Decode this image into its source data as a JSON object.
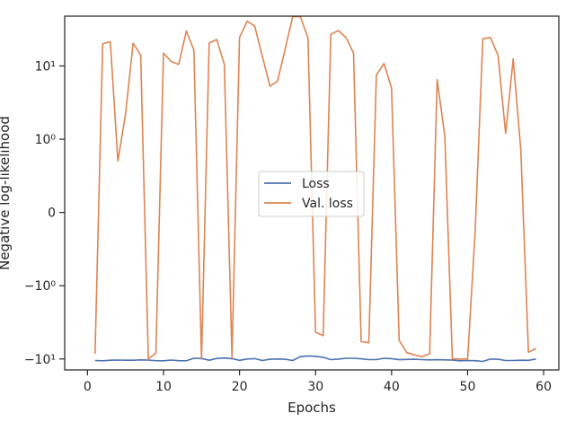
{
  "chart_data": {
    "type": "line",
    "xlabel": "Epochs",
    "ylabel": "Negative log-likelihood",
    "yscale": "symlog",
    "xlim": [
      -3,
      62
    ],
    "x_ticks": [
      0,
      10,
      20,
      30,
      40,
      50,
      60
    ],
    "y_ticks": [
      {
        "value": -10,
        "label": "−10¹"
      },
      {
        "value": -1,
        "label": "−10⁰"
      },
      {
        "value": 0,
        "label": "0"
      },
      {
        "value": 1,
        "label": "10⁰"
      },
      {
        "value": 10,
        "label": "10¹"
      }
    ],
    "grid": false,
    "legend_position": "center-right",
    "x": [
      1,
      2,
      3,
      4,
      5,
      6,
      7,
      8,
      9,
      10,
      11,
      12,
      13,
      14,
      15,
      16,
      17,
      18,
      19,
      20,
      21,
      22,
      23,
      24,
      25,
      26,
      27,
      28,
      29,
      30,
      31,
      32,
      33,
      34,
      35,
      36,
      37,
      38,
      39,
      40,
      41,
      42,
      43,
      44,
      45,
      46,
      47,
      48,
      49,
      50,
      51,
      52,
      53,
      54,
      55,
      56,
      57,
      58,
      59
    ],
    "series": [
      {
        "name": "Loss",
        "color": "#4c72b0",
        "values": [
          -10.5,
          -10.6,
          -10.4,
          -10.35,
          -10.4,
          -10.42,
          -10.3,
          -10.35,
          -10.55,
          -10.6,
          -10.35,
          -10.55,
          -10.6,
          -9.8,
          -9.85,
          -10.4,
          -9.85,
          -9.7,
          -9.9,
          -10.45,
          -10.0,
          -9.9,
          -10.5,
          -10.1,
          -10.0,
          -10.1,
          -10.5,
          -9.3,
          -9.1,
          -9.2,
          -9.5,
          -10.2,
          -10.05,
          -9.8,
          -9.8,
          -9.95,
          -10.2,
          -10.2,
          -9.8,
          -9.9,
          -10.25,
          -10.15,
          -10.1,
          -10.2,
          -10.3,
          -10.25,
          -10.3,
          -10.35,
          -10.6,
          -10.5,
          -10.55,
          -10.8,
          -10.05,
          -10.1,
          -10.5,
          -10.5,
          -10.4,
          -10.45,
          -10.0
        ]
      },
      {
        "name": "Val. loss",
        "color": "#dd8452",
        "values": [
          -8.5,
          20,
          21.5,
          0.7,
          2.2,
          20.5,
          14,
          -10,
          -8.3,
          15,
          11.5,
          10.5,
          30,
          16.5,
          -10,
          20.5,
          23,
          10.5,
          -9.5,
          24.5,
          41,
          35,
          13.5,
          5.3,
          6.2,
          17,
          47,
          47,
          24,
          -4.3,
          -4.8,
          27,
          30.5,
          24.5,
          15,
          -5.8,
          -6.0,
          7.5,
          10.8,
          5,
          -5.6,
          -8.2,
          -8.8,
          -9.3,
          -8.5,
          6.5,
          1.1,
          -10,
          -10,
          -10,
          -0.25,
          23.5,
          24.5,
          14,
          1.2,
          12.5,
          0.85,
          -8.1,
          -7.2
        ]
      }
    ]
  }
}
